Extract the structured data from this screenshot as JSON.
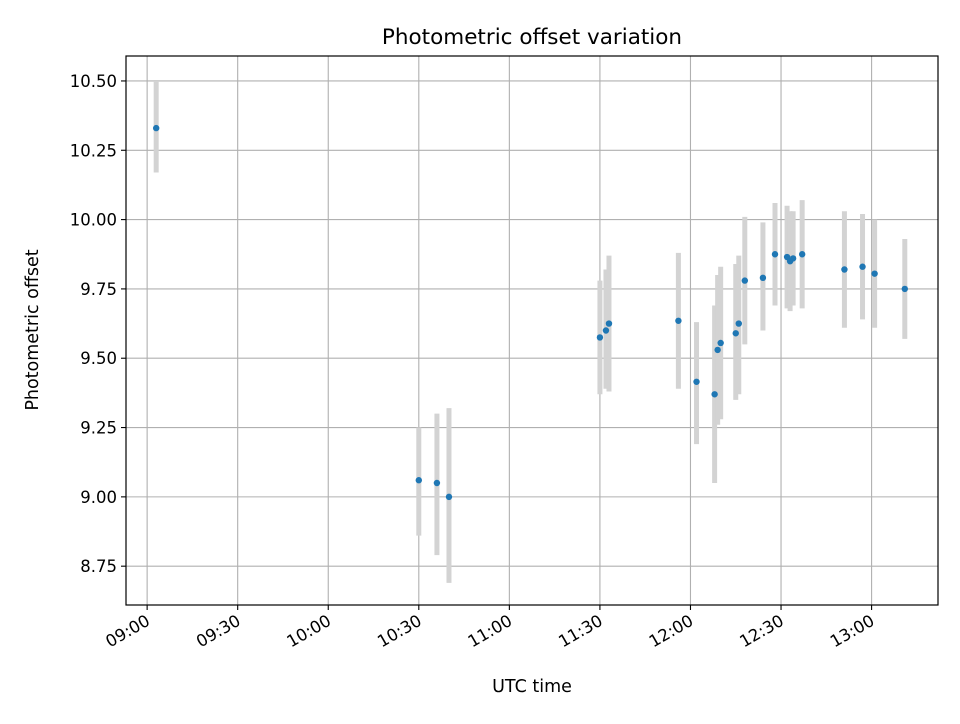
{
  "chart_data": {
    "type": "scatter",
    "title": "Photometric offset variation",
    "xlabel": "UTC time",
    "ylabel": "Photometric offset",
    "x_tick_labels": [
      "09:00",
      "09:30",
      "10:00",
      "10:30",
      "11:00",
      "11:30",
      "12:00",
      "12:30",
      "13:00"
    ],
    "y_tick_labels": [
      "8.75",
      "9.00",
      "9.25",
      "9.50",
      "9.75",
      "10.00",
      "10.25",
      "10.50"
    ],
    "y_ticks": [
      8.75,
      9.0,
      9.25,
      9.5,
      9.75,
      10.0,
      10.25,
      10.5
    ],
    "xlim": [
      "08:53",
      "13:22"
    ],
    "ylim": [
      8.61,
      10.59
    ],
    "grid": true,
    "marker_color": "#1f77b4",
    "errorbar_color": "#d3d3d3",
    "points": [
      {
        "t": "09:03",
        "y": 10.33,
        "lo": 10.17,
        "hi": 10.5
      },
      {
        "t": "10:30",
        "y": 9.06,
        "lo": 8.86,
        "hi": 9.25
      },
      {
        "t": "10:36",
        "y": 9.05,
        "lo": 8.79,
        "hi": 9.3
      },
      {
        "t": "10:40",
        "y": 9.0,
        "lo": 8.69,
        "hi": 9.32
      },
      {
        "t": "11:30",
        "y": 9.575,
        "lo": 9.37,
        "hi": 9.78
      },
      {
        "t": "11:32",
        "y": 9.6,
        "lo": 9.39,
        "hi": 9.82
      },
      {
        "t": "11:33",
        "y": 9.625,
        "lo": 9.38,
        "hi": 9.87
      },
      {
        "t": "11:56",
        "y": 9.635,
        "lo": 9.39,
        "hi": 9.88
      },
      {
        "t": "12:02",
        "y": 9.415,
        "lo": 9.19,
        "hi": 9.63
      },
      {
        "t": "12:08",
        "y": 9.37,
        "lo": 9.05,
        "hi": 9.69
      },
      {
        "t": "12:09",
        "y": 9.53,
        "lo": 9.26,
        "hi": 9.8
      },
      {
        "t": "12:10",
        "y": 9.555,
        "lo": 9.28,
        "hi": 9.83
      },
      {
        "t": "12:15",
        "y": 9.59,
        "lo": 9.35,
        "hi": 9.84
      },
      {
        "t": "12:16",
        "y": 9.625,
        "lo": 9.37,
        "hi": 9.87
      },
      {
        "t": "12:18",
        "y": 9.78,
        "lo": 9.55,
        "hi": 10.01
      },
      {
        "t": "12:24",
        "y": 9.79,
        "lo": 9.6,
        "hi": 9.99
      },
      {
        "t": "12:28",
        "y": 9.875,
        "lo": 9.69,
        "hi": 10.06
      },
      {
        "t": "12:32",
        "y": 9.865,
        "lo": 9.68,
        "hi": 10.05
      },
      {
        "t": "12:33",
        "y": 9.85,
        "lo": 9.67,
        "hi": 10.03
      },
      {
        "t": "12:34",
        "y": 9.86,
        "lo": 9.69,
        "hi": 10.03
      },
      {
        "t": "12:37",
        "y": 9.875,
        "lo": 9.68,
        "hi": 10.07
      },
      {
        "t": "12:51",
        "y": 9.82,
        "lo": 9.61,
        "hi": 10.03
      },
      {
        "t": "12:57",
        "y": 9.83,
        "lo": 9.64,
        "hi": 10.02
      },
      {
        "t": "13:01",
        "y": 9.805,
        "lo": 9.61,
        "hi": 10.0
      },
      {
        "t": "13:11",
        "y": 9.75,
        "lo": 9.57,
        "hi": 9.93
      }
    ]
  }
}
